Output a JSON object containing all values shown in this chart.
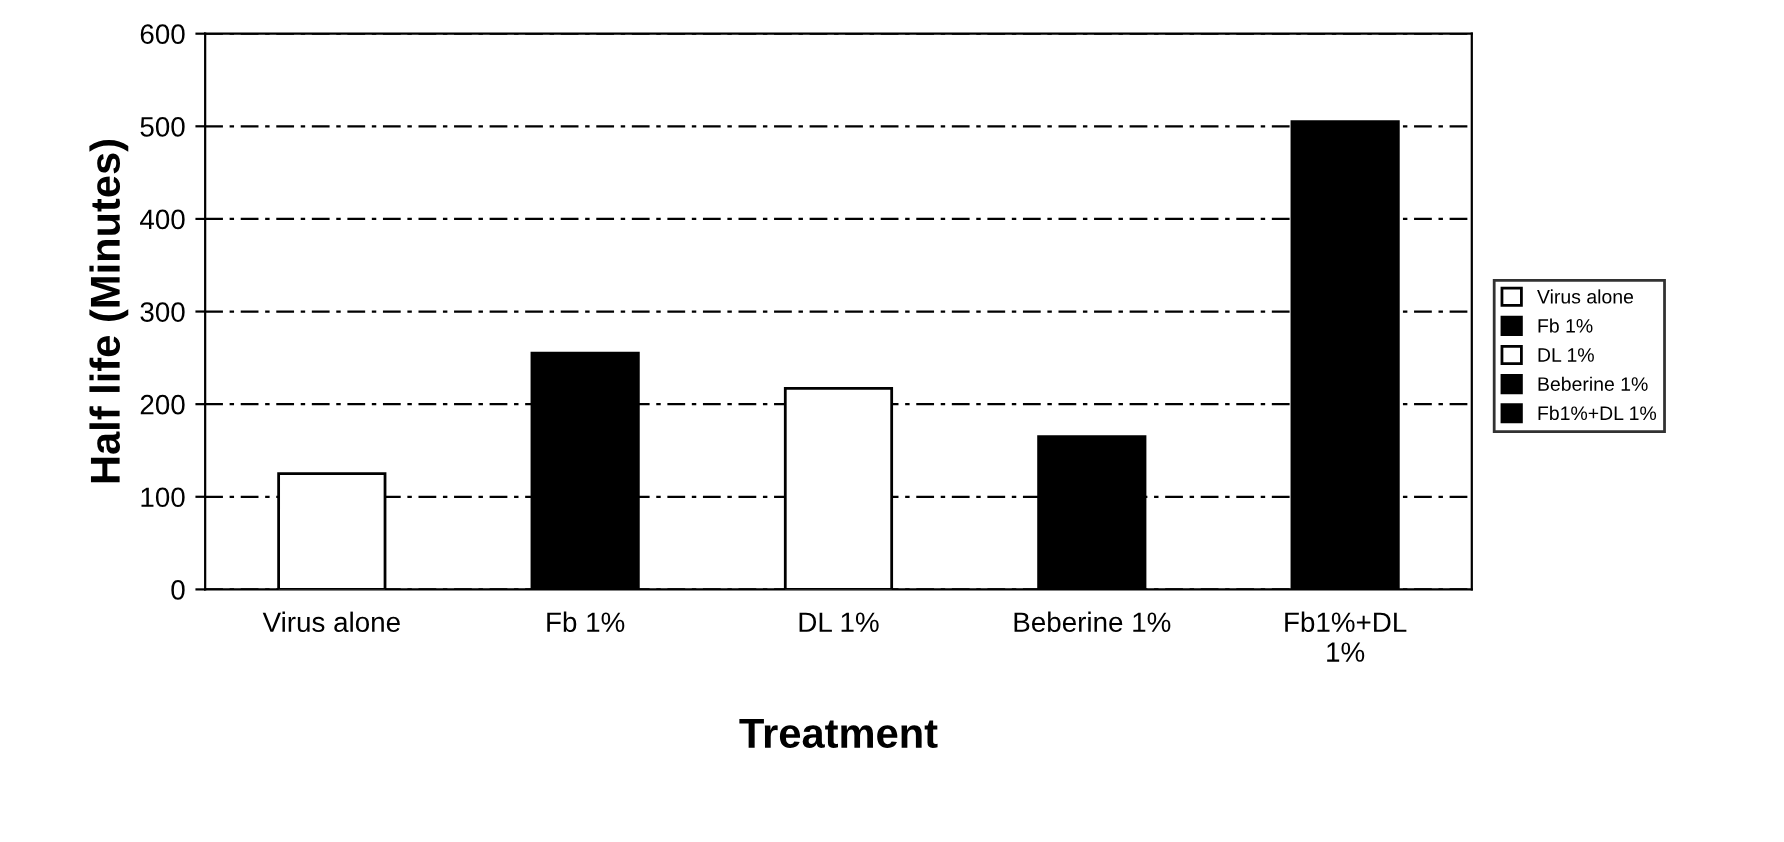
{
  "chart_data": {
    "type": "bar",
    "xlabel": "Treatment",
    "ylabel": "Half life (Minutes)",
    "categories": [
      "Virus alone",
      "Fb 1%",
      "DL 1%",
      "Beberine 1%",
      "Fb1%+DL\n1%"
    ],
    "series": [
      {
        "name": "Virus alone",
        "color": "#ffffff",
        "values": [
          125,
          null,
          null,
          null,
          null
        ]
      },
      {
        "name": "Fb 1%",
        "color": "#000000",
        "values": [
          null,
          255,
          null,
          null,
          null
        ]
      },
      {
        "name": "DL 1%",
        "color": "#ffffff",
        "values": [
          null,
          null,
          217,
          null,
          null
        ]
      },
      {
        "name": "Beberine 1%",
        "color": "#000000",
        "values": [
          null,
          null,
          null,
          165,
          null
        ]
      },
      {
        "name": "Fb1%+DL 1%",
        "color": "#000000",
        "values": [
          null,
          null,
          null,
          null,
          505
        ]
      }
    ],
    "ylim": [
      0,
      600
    ],
    "yticks": [
      0,
      100,
      200,
      300,
      400,
      500,
      600
    ],
    "grid": "y",
    "legend": "right"
  }
}
